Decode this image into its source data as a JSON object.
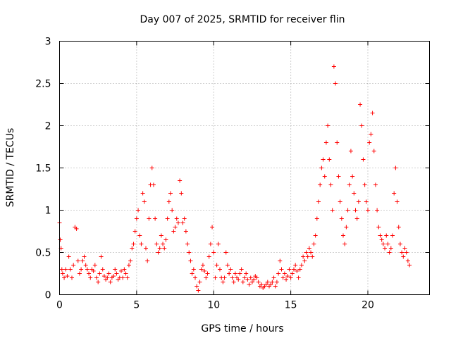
{
  "chart_data": {
    "type": "scatter",
    "title": "Day 007 of 2025, SRMTID for receiver flin",
    "xlabel": "GPS time / hours",
    "ylabel": "SRMTID / TECUs",
    "xlim": [
      0,
      24
    ],
    "ylim": [
      0,
      3
    ],
    "xticks": [
      0,
      5,
      10,
      15,
      20
    ],
    "yticks": [
      0,
      0.5,
      1,
      1.5,
      2,
      2.5,
      3
    ],
    "xtick_labels": [
      "0",
      "5",
      "10",
      "15",
      "20"
    ],
    "ytick_labels": [
      "0",
      "0.5",
      "1",
      "1.5",
      "2",
      "2.5",
      "3"
    ],
    "grid": true,
    "marker": "+",
    "color": "#ff0000",
    "series": [
      {
        "name": "SRMTID",
        "points": [
          [
            0.0,
            0.85
          ],
          [
            0.05,
            0.65
          ],
          [
            0.1,
            0.55
          ],
          [
            0.15,
            0.3
          ],
          [
            0.2,
            0.25
          ],
          [
            0.3,
            0.2
          ],
          [
            0.4,
            0.3
          ],
          [
            0.5,
            0.22
          ],
          [
            0.6,
            0.45
          ],
          [
            0.7,
            0.3
          ],
          [
            0.8,
            0.2
          ],
          [
            0.9,
            0.35
          ],
          [
            1.0,
            0.8
          ],
          [
            1.1,
            0.78
          ],
          [
            1.2,
            0.4
          ],
          [
            1.3,
            0.25
          ],
          [
            1.4,
            0.3
          ],
          [
            1.5,
            0.4
          ],
          [
            1.6,
            0.45
          ],
          [
            1.7,
            0.35
          ],
          [
            1.8,
            0.3
          ],
          [
            1.9,
            0.25
          ],
          [
            2.0,
            0.2
          ],
          [
            2.1,
            0.3
          ],
          [
            2.2,
            0.28
          ],
          [
            2.3,
            0.35
          ],
          [
            2.4,
            0.2
          ],
          [
            2.5,
            0.15
          ],
          [
            2.6,
            0.25
          ],
          [
            2.7,
            0.45
          ],
          [
            2.8,
            0.3
          ],
          [
            2.9,
            0.22
          ],
          [
            3.0,
            0.18
          ],
          [
            3.1,
            0.2
          ],
          [
            3.2,
            0.25
          ],
          [
            3.3,
            0.15
          ],
          [
            3.4,
            0.2
          ],
          [
            3.5,
            0.22
          ],
          [
            3.6,
            0.3
          ],
          [
            3.7,
            0.25
          ],
          [
            3.8,
            0.18
          ],
          [
            3.9,
            0.2
          ],
          [
            4.0,
            0.28
          ],
          [
            4.1,
            0.2
          ],
          [
            4.2,
            0.3
          ],
          [
            4.3,
            0.25
          ],
          [
            4.4,
            0.2
          ],
          [
            4.5,
            0.35
          ],
          [
            4.6,
            0.4
          ],
          [
            4.7,
            0.55
          ],
          [
            4.8,
            0.6
          ],
          [
            4.9,
            0.75
          ],
          [
            5.0,
            0.9
          ],
          [
            5.1,
            1.0
          ],
          [
            5.2,
            0.7
          ],
          [
            5.3,
            0.6
          ],
          [
            5.4,
            1.2
          ],
          [
            5.5,
            1.1
          ],
          [
            5.6,
            0.55
          ],
          [
            5.7,
            0.4
          ],
          [
            5.8,
            0.9
          ],
          [
            5.9,
            1.3
          ],
          [
            6.0,
            1.5
          ],
          [
            6.1,
            1.3
          ],
          [
            6.2,
            0.9
          ],
          [
            6.3,
            0.6
          ],
          [
            6.4,
            0.5
          ],
          [
            6.5,
            0.55
          ],
          [
            6.6,
            0.7
          ],
          [
            6.7,
            0.6
          ],
          [
            6.8,
            0.55
          ],
          [
            6.9,
            0.65
          ],
          [
            7.0,
            0.9
          ],
          [
            7.1,
            1.1
          ],
          [
            7.2,
            1.2
          ],
          [
            7.3,
            1.0
          ],
          [
            7.4,
            0.75
          ],
          [
            7.5,
            0.8
          ],
          [
            7.6,
            0.9
          ],
          [
            7.7,
            0.85
          ],
          [
            7.8,
            1.35
          ],
          [
            7.9,
            1.2
          ],
          [
            8.0,
            0.85
          ],
          [
            8.1,
            0.9
          ],
          [
            8.2,
            0.75
          ],
          [
            8.3,
            0.6
          ],
          [
            8.4,
            0.5
          ],
          [
            8.5,
            0.4
          ],
          [
            8.6,
            0.25
          ],
          [
            8.7,
            0.3
          ],
          [
            8.8,
            0.2
          ],
          [
            8.9,
            0.1
          ],
          [
            9.0,
            0.05
          ],
          [
            9.1,
            0.15
          ],
          [
            9.2,
            0.3
          ],
          [
            9.3,
            0.35
          ],
          [
            9.4,
            0.28
          ],
          [
            9.5,
            0.2
          ],
          [
            9.6,
            0.25
          ],
          [
            9.7,
            0.45
          ],
          [
            9.8,
            0.6
          ],
          [
            9.9,
            0.8
          ],
          [
            10.0,
            0.5
          ],
          [
            10.1,
            0.2
          ],
          [
            10.2,
            0.35
          ],
          [
            10.3,
            0.6
          ],
          [
            10.4,
            0.3
          ],
          [
            10.5,
            0.2
          ],
          [
            10.6,
            0.15
          ],
          [
            10.7,
            0.2
          ],
          [
            10.8,
            0.5
          ],
          [
            10.9,
            0.35
          ],
          [
            11.0,
            0.25
          ],
          [
            11.1,
            0.3
          ],
          [
            11.2,
            0.2
          ],
          [
            11.3,
            0.15
          ],
          [
            11.4,
            0.25
          ],
          [
            11.5,
            0.2
          ],
          [
            11.6,
            0.18
          ],
          [
            11.7,
            0.25
          ],
          [
            11.8,
            0.3
          ],
          [
            11.9,
            0.15
          ],
          [
            12.0,
            0.2
          ],
          [
            12.1,
            0.25
          ],
          [
            12.2,
            0.18
          ],
          [
            12.3,
            0.12
          ],
          [
            12.4,
            0.2
          ],
          [
            12.5,
            0.15
          ],
          [
            12.6,
            0.18
          ],
          [
            12.7,
            0.22
          ],
          [
            12.8,
            0.2
          ],
          [
            12.9,
            0.15
          ],
          [
            13.0,
            0.1
          ],
          [
            13.1,
            0.12
          ],
          [
            13.2,
            0.08
          ],
          [
            13.3,
            0.1
          ],
          [
            13.4,
            0.12
          ],
          [
            13.5,
            0.15
          ],
          [
            13.6,
            0.1
          ],
          [
            13.7,
            0.12
          ],
          [
            13.8,
            0.15
          ],
          [
            13.9,
            0.2
          ],
          [
            14.0,
            0.1
          ],
          [
            14.1,
            0.15
          ],
          [
            14.2,
            0.25
          ],
          [
            14.3,
            0.4
          ],
          [
            14.4,
            0.3
          ],
          [
            14.5,
            0.2
          ],
          [
            14.6,
            0.25
          ],
          [
            14.7,
            0.18
          ],
          [
            14.8,
            0.22
          ],
          [
            14.9,
            0.3
          ],
          [
            15.0,
            0.2
          ],
          [
            15.1,
            0.25
          ],
          [
            15.2,
            0.3
          ],
          [
            15.3,
            0.35
          ],
          [
            15.4,
            0.28
          ],
          [
            15.5,
            0.2
          ],
          [
            15.6,
            0.3
          ],
          [
            15.7,
            0.35
          ],
          [
            15.8,
            0.45
          ],
          [
            15.9,
            0.4
          ],
          [
            16.0,
            0.5
          ],
          [
            16.1,
            0.45
          ],
          [
            16.2,
            0.55
          ],
          [
            16.3,
            0.5
          ],
          [
            16.4,
            0.45
          ],
          [
            16.5,
            0.6
          ],
          [
            16.6,
            0.7
          ],
          [
            16.7,
            0.9
          ],
          [
            16.8,
            1.1
          ],
          [
            16.9,
            1.3
          ],
          [
            17.0,
            1.5
          ],
          [
            17.1,
            1.6
          ],
          [
            17.2,
            1.4
          ],
          [
            17.3,
            1.8
          ],
          [
            17.4,
            2.0
          ],
          [
            17.5,
            1.6
          ],
          [
            17.6,
            1.3
          ],
          [
            17.7,
            1.0
          ],
          [
            17.8,
            2.7
          ],
          [
            17.9,
            2.5
          ],
          [
            18.0,
            1.8
          ],
          [
            18.1,
            1.4
          ],
          [
            18.2,
            1.1
          ],
          [
            18.3,
            0.9
          ],
          [
            18.4,
            0.7
          ],
          [
            18.5,
            0.6
          ],
          [
            18.6,
            0.8
          ],
          [
            18.7,
            1.0
          ],
          [
            18.8,
            1.3
          ],
          [
            18.9,
            1.7
          ],
          [
            19.0,
            1.4
          ],
          [
            19.1,
            1.2
          ],
          [
            19.2,
            1.0
          ],
          [
            19.3,
            0.9
          ],
          [
            19.4,
            1.1
          ],
          [
            19.5,
            2.25
          ],
          [
            19.6,
            2.0
          ],
          [
            19.7,
            1.6
          ],
          [
            19.8,
            1.3
          ],
          [
            19.9,
            1.1
          ],
          [
            20.0,
            1.0
          ],
          [
            20.1,
            1.8
          ],
          [
            20.2,
            1.9
          ],
          [
            20.3,
            2.15
          ],
          [
            20.4,
            1.7
          ],
          [
            20.5,
            1.3
          ],
          [
            20.6,
            1.0
          ],
          [
            20.7,
            0.8
          ],
          [
            20.8,
            0.7
          ],
          [
            20.9,
            0.65
          ],
          [
            21.0,
            0.6
          ],
          [
            21.1,
            0.55
          ],
          [
            21.2,
            0.7
          ],
          [
            21.3,
            0.6
          ],
          [
            21.4,
            0.5
          ],
          [
            21.5,
            0.55
          ],
          [
            21.6,
            0.7
          ],
          [
            21.7,
            1.2
          ],
          [
            21.8,
            1.5
          ],
          [
            21.9,
            1.1
          ],
          [
            22.0,
            0.8
          ],
          [
            22.1,
            0.6
          ],
          [
            22.2,
            0.5
          ],
          [
            22.3,
            0.45
          ],
          [
            22.4,
            0.55
          ],
          [
            22.5,
            0.5
          ],
          [
            22.6,
            0.4
          ],
          [
            22.7,
            0.35
          ]
        ]
      }
    ]
  }
}
